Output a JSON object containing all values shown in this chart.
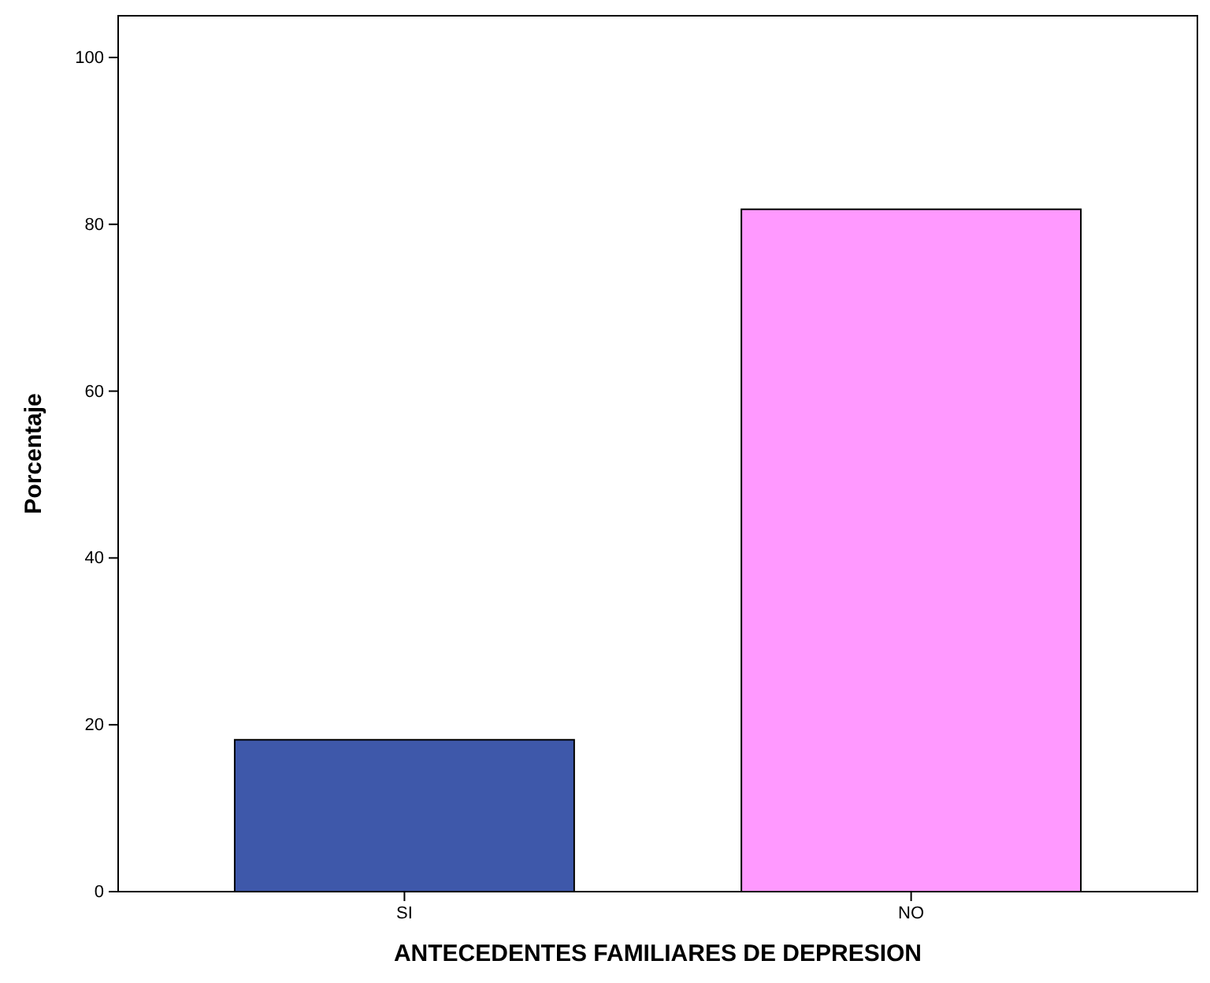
{
  "chart_data": {
    "type": "bar",
    "xlabel": "ANTECEDENTES FAMILIARES DE DEPRESION",
    "ylabel": "Porcentaje",
    "categories": [
      "SI",
      "NO"
    ],
    "values": [
      18.2,
      81.8
    ],
    "colors": [
      "#3e58aa",
      "#ff99ff"
    ],
    "ylim": [
      0,
      105
    ],
    "yticks": [
      0,
      20,
      40,
      60,
      80,
      100
    ],
    "grid": false
  }
}
